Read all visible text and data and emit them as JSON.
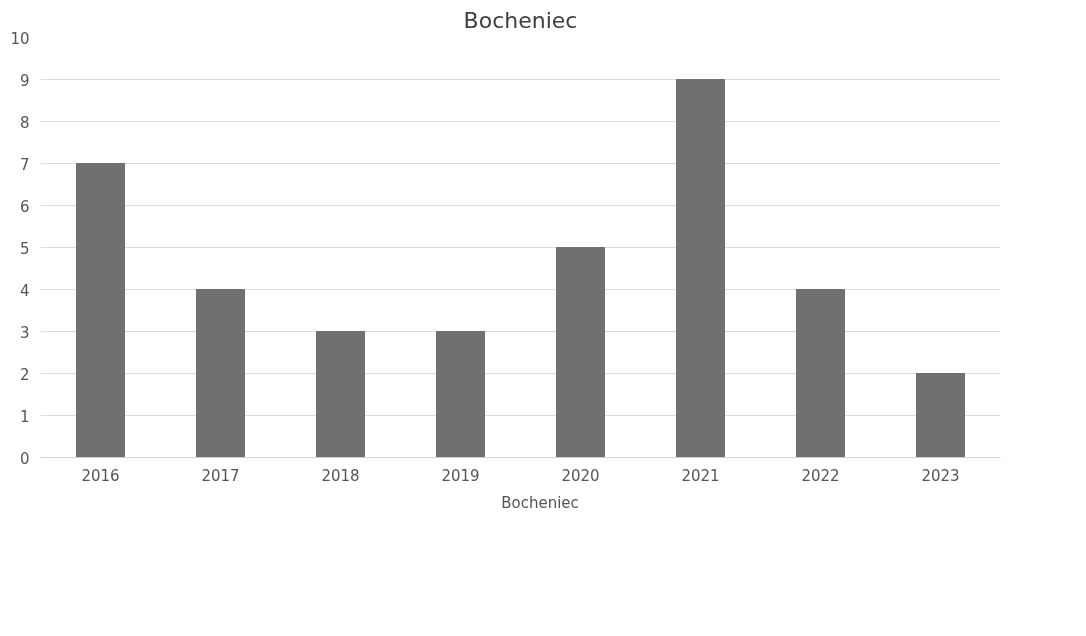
{
  "chart_data": {
    "type": "bar",
    "title": "Bocheniec",
    "categories": [
      "2016",
      "2017",
      "2018",
      "2019",
      "2020",
      "2021",
      "2022",
      "2023"
    ],
    "series": [
      {
        "name": "Bocheniec",
        "color": "#707070",
        "values": [
          7,
          4,
          3,
          3,
          5,
          9,
          4,
          2
        ]
      }
    ],
    "ylim": [
      0,
      10
    ],
    "yticks": [
      0,
      1,
      2,
      3,
      4,
      5,
      6,
      7,
      8,
      9,
      10
    ],
    "grid": "y",
    "legend": "bottom"
  }
}
